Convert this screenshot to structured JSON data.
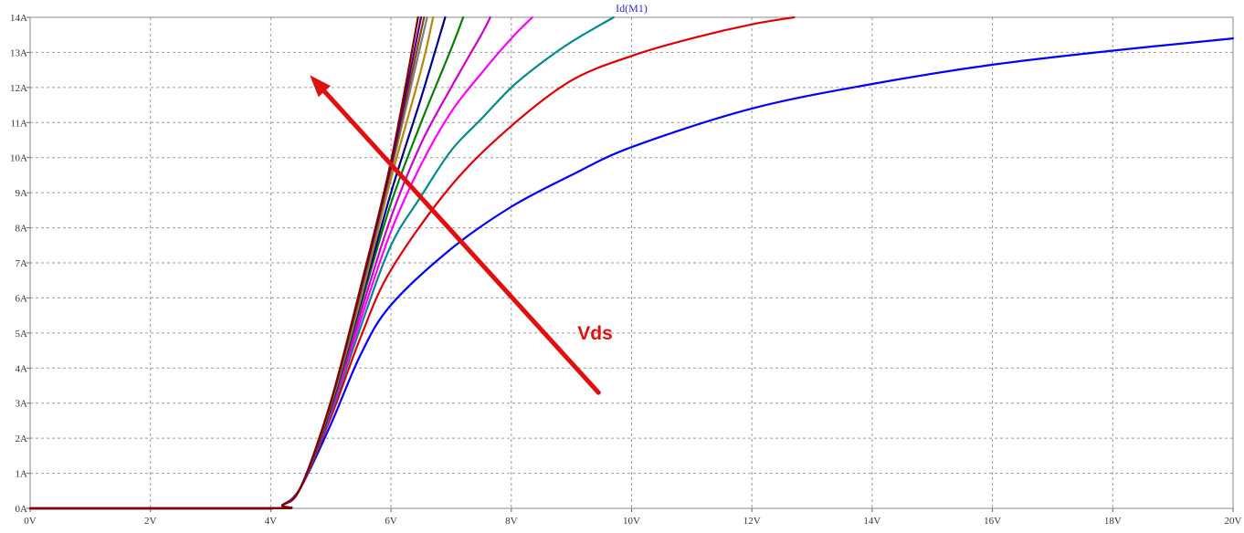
{
  "chart_data": {
    "type": "line",
    "title": "Id(M1)",
    "xlabel": "",
    "ylabel": "",
    "xlim": [
      0,
      20
    ],
    "ylim": [
      0,
      14
    ],
    "grid": true,
    "legend": "none",
    "x_ticks": [
      "0V",
      "2V",
      "4V",
      "6V",
      "8V",
      "10V",
      "12V",
      "14V",
      "16V",
      "18V",
      "20V"
    ],
    "y_ticks": [
      "0A",
      "1A",
      "2A",
      "3A",
      "4A",
      "5A",
      "6A",
      "7A",
      "8A",
      "9A",
      "10A",
      "11A",
      "12A",
      "13A",
      "14A"
    ],
    "series": [
      {
        "color": "#0000ff",
        "x": [
          0,
          4,
          4.2,
          4.5,
          5,
          5.5,
          6,
          7,
          8,
          9,
          10,
          12,
          14,
          16,
          18,
          20
        ],
        "y": [
          0,
          0,
          0.1,
          0.6,
          2.4,
          4.4,
          5.8,
          7.4,
          8.6,
          9.5,
          10.3,
          11.4,
          12.1,
          12.65,
          13.05,
          13.4
        ]
      },
      {
        "color": "#e00000",
        "x": [
          0,
          4,
          4.2,
          4.5,
          5,
          5.5,
          6,
          7,
          8,
          9,
          10,
          11,
          12,
          12.7
        ],
        "y": [
          0,
          0,
          0.1,
          0.6,
          2.6,
          4.9,
          6.8,
          9.2,
          10.9,
          12.2,
          12.9,
          13.4,
          13.8,
          14
        ]
      },
      {
        "color": "#008b8b",
        "x": [
          0,
          4,
          4.2,
          4.5,
          5,
          5.5,
          6,
          6.5,
          7,
          7.5,
          8,
          8.5,
          9,
          9.7
        ],
        "y": [
          0,
          0,
          0.1,
          0.6,
          2.7,
          5.2,
          7.5,
          8.9,
          10.2,
          11.1,
          12.0,
          12.7,
          13.3,
          14
        ]
      },
      {
        "color": "#ff00ff",
        "x": [
          0,
          4,
          4.2,
          4.5,
          5,
          5.5,
          6,
          6.5,
          7,
          7.5,
          8,
          8.35
        ],
        "y": [
          0,
          0,
          0.1,
          0.6,
          2.75,
          5.4,
          7.9,
          9.8,
          11.3,
          12.4,
          13.4,
          14
        ]
      },
      {
        "color": "#cc00cc",
        "x": [
          0,
          4,
          4.2,
          4.5,
          5,
          5.5,
          6,
          6.5,
          7,
          7.5,
          7.65
        ],
        "y": [
          0,
          0,
          0.1,
          0.6,
          2.8,
          5.6,
          8.3,
          10.4,
          12.0,
          13.5,
          14
        ]
      },
      {
        "color": "#008000",
        "x": [
          0,
          4,
          4.2,
          4.5,
          5,
          5.5,
          6,
          6.5,
          7,
          7.2
        ],
        "y": [
          0,
          0,
          0.1,
          0.6,
          2.85,
          5.8,
          8.7,
          11.0,
          13.1,
          14
        ]
      },
      {
        "color": "#00008b",
        "x": [
          0,
          4,
          4.2,
          4.5,
          5,
          5.5,
          6,
          6.5,
          6.9
        ],
        "y": [
          0,
          0,
          0.1,
          0.6,
          2.9,
          5.9,
          9.0,
          11.7,
          14
        ]
      },
      {
        "color": "#b8860b",
        "x": [
          0,
          4,
          4.2,
          4.5,
          5,
          5.5,
          6,
          6.5,
          6.7
        ],
        "y": [
          0,
          0,
          0.1,
          0.6,
          2.95,
          6.0,
          9.4,
          12.5,
          14
        ]
      },
      {
        "color": "#808080",
        "x": [
          0,
          4,
          4.2,
          4.5,
          5,
          5.5,
          6,
          6.6
        ],
        "y": [
          0,
          0,
          0.1,
          0.6,
          3.0,
          6.1,
          9.6,
          14
        ]
      },
      {
        "color": "#8b4513",
        "x": [
          0,
          4,
          4.2,
          4.5,
          5,
          5.5,
          6,
          6.55
        ],
        "y": [
          0,
          0,
          0.1,
          0.6,
          3.0,
          6.2,
          9.7,
          14
        ]
      },
      {
        "color": "#4b0082",
        "x": [
          0,
          4,
          4.2,
          4.5,
          5,
          5.5,
          6,
          6.5
        ],
        "y": [
          0,
          0,
          0.1,
          0.6,
          3.05,
          6.3,
          9.8,
          14
        ]
      },
      {
        "color": "#800000",
        "x": [
          0,
          4,
          4.2,
          4.5,
          5,
          5.5,
          6,
          6.45
        ],
        "y": [
          0,
          0,
          0.1,
          0.6,
          3.05,
          6.35,
          9.9,
          14
        ]
      }
    ],
    "annotations": [
      {
        "type": "arrow",
        "color": "#e01010",
        "from": [
          9.45,
          3.3
        ],
        "to": [
          4.65,
          12.35
        ]
      },
      {
        "type": "text",
        "text": "Vds",
        "color": "#e01010",
        "x": 9.1,
        "y": 5.0
      }
    ]
  }
}
